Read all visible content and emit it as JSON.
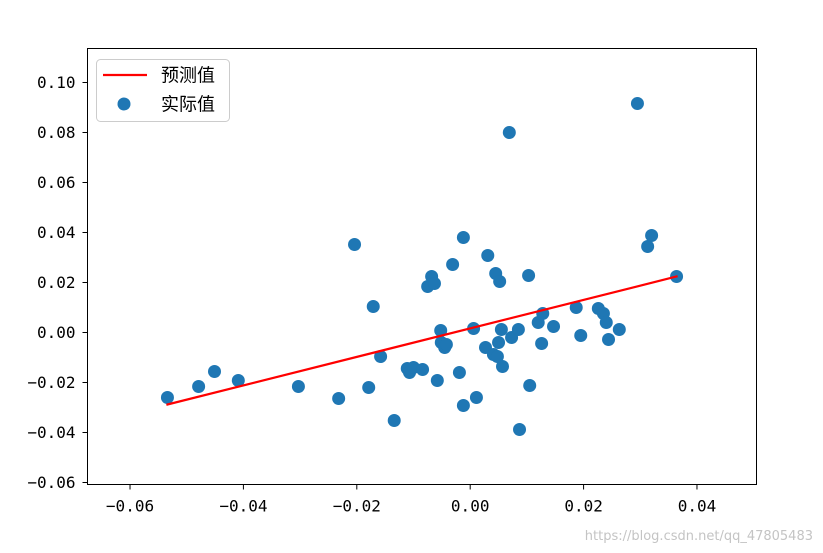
{
  "chart_data": {
    "type": "scatter",
    "xlim": [
      -0.0675,
      0.0505
    ],
    "ylim": [
      -0.0608,
      0.1136
    ],
    "xticks": [
      -0.06,
      -0.04,
      -0.02,
      0.0,
      0.02,
      0.04
    ],
    "xtick_labels": [
      "−0.06",
      "−0.04",
      "−0.02",
      "0.00",
      "0.02",
      "0.04"
    ],
    "yticks": [
      -0.06,
      -0.04,
      -0.02,
      0.0,
      0.02,
      0.04,
      0.06,
      0.08,
      0.1
    ],
    "ytick_labels": [
      "−0.06",
      "−0.04",
      "−0.02",
      "0.00",
      "0.02",
      "0.04",
      "0.06",
      "0.08",
      "0.10"
    ],
    "grid": false,
    "legend": "top-left",
    "series": [
      {
        "name": "预测值",
        "type": "line",
        "color": "#ff0000",
        "x": [
          -0.0534,
          0.0364
        ],
        "y": [
          -0.0288,
          0.0224
        ]
      },
      {
        "name": "实际值",
        "type": "scatter",
        "color": "#1f77b4",
        "x": [
          -0.0534,
          -0.0479,
          -0.0451,
          -0.0409,
          -0.0303,
          -0.0232,
          -0.0204,
          -0.0179,
          -0.0171,
          -0.0158,
          -0.0134,
          -0.0111,
          -0.0107,
          -0.01,
          -0.0084,
          -0.0075,
          -0.0068,
          -0.0063,
          -0.0058,
          -0.0052,
          -0.0051,
          -0.0045,
          -0.0042,
          -0.0031,
          -0.0019,
          -0.0012,
          -0.0012,
          0.0006,
          0.0011,
          0.0027,
          0.0031,
          0.0041,
          0.0045,
          0.0048,
          0.005,
          0.0052,
          0.0055,
          0.0057,
          0.0069,
          0.0073,
          0.0085,
          0.0087,
          0.0103,
          0.0105,
          0.012,
          0.0126,
          0.0128,
          0.0147,
          0.0187,
          0.0195,
          0.0226,
          0.0235,
          0.024,
          0.0244,
          0.0263,
          0.0295,
          0.0313,
          0.032,
          0.0364
        ],
        "y": [
          -0.026,
          -0.0216,
          -0.0156,
          -0.0192,
          -0.0216,
          -0.0264,
          0.0352,
          -0.022,
          0.0104,
          -0.0096,
          -0.0352,
          -0.0144,
          -0.016,
          -0.014,
          -0.0148,
          0.0184,
          0.0224,
          0.0196,
          -0.0192,
          0.0008,
          -0.004,
          -0.006,
          -0.0048,
          0.0272,
          -0.016,
          0.038,
          -0.0292,
          0.0016,
          -0.026,
          -0.006,
          0.0308,
          -0.0088,
          0.0236,
          -0.0096,
          -0.004,
          0.0204,
          0.0012,
          -0.0136,
          0.08,
          -0.002,
          0.0012,
          -0.0388,
          0.0228,
          -0.0212,
          0.004,
          -0.0044,
          0.0076,
          0.0024,
          0.01,
          -0.0012,
          0.0096,
          0.0076,
          0.004,
          -0.0028,
          0.0012,
          0.0916,
          0.0344,
          0.0388,
          0.0224
        ]
      }
    ]
  },
  "watermark": "https://blog.csdn.net/qq_47805483"
}
